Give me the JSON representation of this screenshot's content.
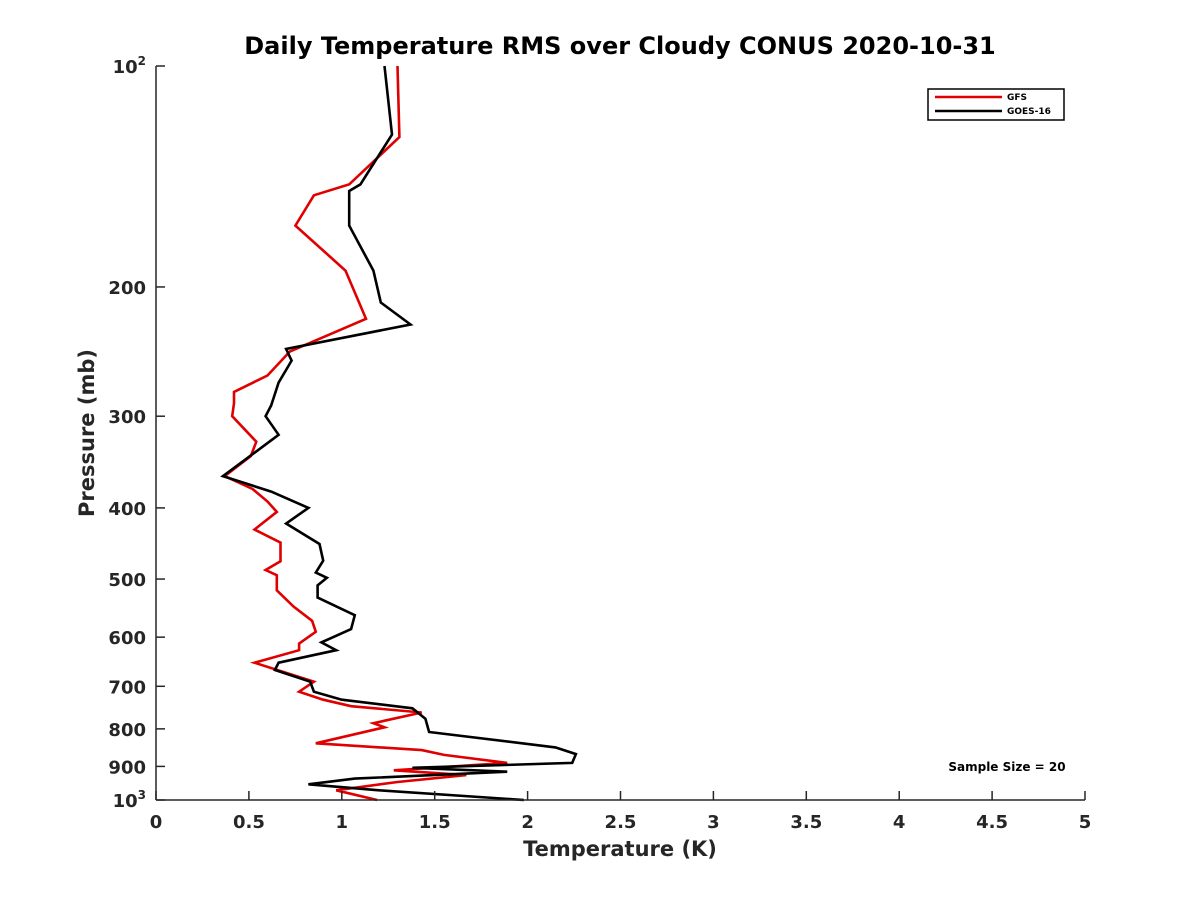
{
  "chart_data": {
    "type": "line",
    "title": "Daily Temperature RMS over Cloudy CONUS 2020-10-31",
    "xlabel": "Temperature (K)",
    "ylabel": "Pressure (mb)",
    "xlim": [
      0,
      5
    ],
    "ylim": [
      100,
      1000
    ],
    "y_scale": "log",
    "y_reversed": true,
    "grid": false,
    "x_ticks": [
      0,
      0.5,
      1,
      1.5,
      2,
      2.5,
      3,
      3.5,
      4,
      4.5,
      5
    ],
    "x_tick_labels": [
      "0",
      "0.5",
      "1",
      "1.5",
      "2",
      "2.5",
      "3",
      "3.5",
      "4",
      "4.5",
      "5"
    ],
    "y_ticks": [
      {
        "value": 100,
        "base": "10",
        "exp": "2"
      },
      {
        "value": 200,
        "label": "200"
      },
      {
        "value": 300,
        "label": "300"
      },
      {
        "value": 400,
        "label": "400"
      },
      {
        "value": 500,
        "label": "500"
      },
      {
        "value": 600,
        "label": "600"
      },
      {
        "value": 700,
        "label": "700"
      },
      {
        "value": 800,
        "label": "800"
      },
      {
        "value": 900,
        "label": "900"
      },
      {
        "value": 1000,
        "base": "10",
        "exp": "3"
      }
    ],
    "legend": {
      "position": "top-right",
      "entries": [
        "GFS",
        "GOES-16"
      ]
    },
    "annotation": "Sample Size = 20",
    "series": [
      {
        "name": "GFS",
        "color": "#e00000",
        "points": [
          [
            1.3,
            100
          ],
          [
            1.31,
            125
          ],
          [
            1.04,
            145
          ],
          [
            0.85,
            150
          ],
          [
            0.75,
            165
          ],
          [
            1.02,
            190
          ],
          [
            1.13,
            221
          ],
          [
            0.72,
            245
          ],
          [
            0.6,
            264
          ],
          [
            0.42,
            278
          ],
          [
            0.42,
            288
          ],
          [
            0.41,
            300
          ],
          [
            0.54,
            325
          ],
          [
            0.51,
            340
          ],
          [
            0.37,
            362
          ],
          [
            0.52,
            377
          ],
          [
            0.6,
            392
          ],
          [
            0.65,
            405
          ],
          [
            0.53,
            428
          ],
          [
            0.67,
            446
          ],
          [
            0.67,
            473
          ],
          [
            0.59,
            486
          ],
          [
            0.65,
            494
          ],
          [
            0.65,
            518
          ],
          [
            0.74,
            545
          ],
          [
            0.84,
            570
          ],
          [
            0.86,
            590
          ],
          [
            0.77,
            612
          ],
          [
            0.77,
            625
          ],
          [
            0.53,
            650
          ],
          [
            0.85,
            690
          ],
          [
            0.77,
            712
          ],
          [
            0.9,
            730
          ],
          [
            1.05,
            745
          ],
          [
            1.43,
            760
          ],
          [
            1.17,
            786
          ],
          [
            1.23,
            796
          ],
          [
            0.86,
            837
          ],
          [
            1.43,
            855
          ],
          [
            1.55,
            868
          ],
          [
            1.89,
            890
          ],
          [
            1.28,
            911
          ],
          [
            1.67,
            925
          ],
          [
            1.3,
            945
          ],
          [
            0.97,
            970
          ],
          [
            1.19,
            1000
          ]
        ]
      },
      {
        "name": "GOES-16",
        "color": "#000000",
        "points": [
          [
            1.23,
            100
          ],
          [
            1.27,
            124
          ],
          [
            1.1,
            145
          ],
          [
            1.04,
            148
          ],
          [
            1.04,
            165
          ],
          [
            1.17,
            190
          ],
          [
            1.21,
            210
          ],
          [
            1.37,
            225
          ],
          [
            0.7,
            243
          ],
          [
            0.73,
            252
          ],
          [
            0.66,
            270
          ],
          [
            0.62,
            290
          ],
          [
            0.59,
            300
          ],
          [
            0.66,
            318
          ],
          [
            0.54,
            335
          ],
          [
            0.36,
            362
          ],
          [
            0.62,
            380
          ],
          [
            0.82,
            400
          ],
          [
            0.7,
            420
          ],
          [
            0.88,
            448
          ],
          [
            0.9,
            472
          ],
          [
            0.86,
            490
          ],
          [
            0.92,
            498
          ],
          [
            0.87,
            510
          ],
          [
            0.87,
            530
          ],
          [
            1.07,
            560
          ],
          [
            1.05,
            585
          ],
          [
            0.89,
            610
          ],
          [
            0.97,
            625
          ],
          [
            0.66,
            650
          ],
          [
            0.64,
            665
          ],
          [
            0.83,
            690
          ],
          [
            0.85,
            712
          ],
          [
            1.0,
            730
          ],
          [
            1.38,
            750
          ],
          [
            1.45,
            775
          ],
          [
            1.47,
            808
          ],
          [
            2.15,
            848
          ],
          [
            2.26,
            866
          ],
          [
            2.24,
            890
          ],
          [
            1.38,
            904
          ],
          [
            1.89,
            915
          ],
          [
            1.07,
            935
          ],
          [
            0.82,
            952
          ],
          [
            1.2,
            970
          ],
          [
            1.98,
            1000
          ]
        ]
      }
    ]
  }
}
